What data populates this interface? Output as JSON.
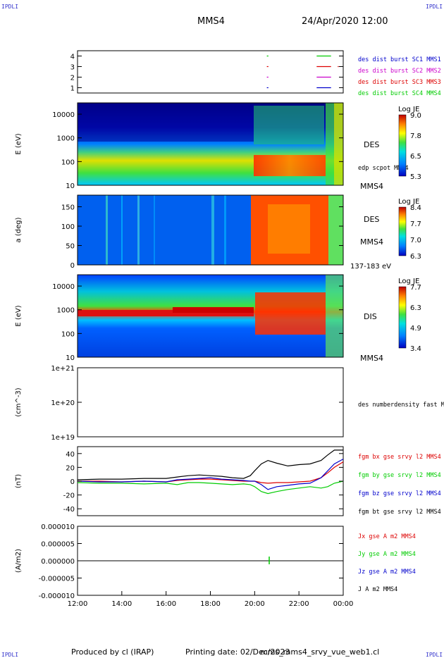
{
  "header": {
    "corner_label": "IPDLI",
    "spacecraft": "MMS4",
    "datetime": "24/Apr/2020 12:00"
  },
  "footer": {
    "produced_by": "Produced by cl (IRAP)",
    "printing_date": "Printing date: 02/Dec/2023",
    "script_name": "mms_mms4_srvy_vue_web1.cl"
  },
  "colors": {
    "blue": "#0000cc",
    "magenta": "#cc00cc",
    "red": "#dd0000",
    "green": "#00cc00",
    "black": "#000000"
  },
  "chart_data": [
    {
      "panel": "burst",
      "type": "line",
      "ylim": [
        0.5,
        4.5
      ],
      "yticks": [
        "1",
        "2",
        "3",
        "4"
      ],
      "legend": [
        {
          "text": "des dist burst SC1 MMS1",
          "color": "#0000cc"
        },
        {
          "text": "des dist burst SC2 MMS2",
          "color": "#cc00cc"
        },
        {
          "text": "des dist burst SC3 MMS3",
          "color": "#dd0000"
        },
        {
          "text": "des dist burst SC4 MMS4",
          "color": "#00cc00"
        }
      ],
      "intervals_hours": [
        {
          "level": 4,
          "color": "#00cc00",
          "spans": [
            [
              20.55,
              20.62
            ],
            [
              22.8,
              23.45
            ]
          ]
        },
        {
          "level": 3,
          "color": "#dd0000",
          "spans": [
            [
              20.55,
              20.62
            ],
            [
              22.8,
              23.45
            ],
            [
              23.75,
              23.8
            ]
          ]
        },
        {
          "level": 2,
          "color": "#cc00cc",
          "spans": [
            [
              20.55,
              20.62
            ],
            [
              22.8,
              23.45
            ]
          ]
        },
        {
          "level": 1,
          "color": "#0000cc",
          "spans": [
            [
              20.55,
              20.62
            ],
            [
              22.8,
              23.45
            ]
          ]
        }
      ]
    },
    {
      "panel": "des_energy",
      "type": "heatmap",
      "ylabel": "E (eV)",
      "yscale": "log",
      "ylim": [
        10,
        30000
      ],
      "yticks": [
        "10",
        "100",
        "1000",
        "10000"
      ],
      "label": "DES",
      "overlay": "edp scpot MMS4",
      "sc_label": "MMS4",
      "colorbar": {
        "title": "Log JE",
        "ticks": [
          "9.0",
          "7.8",
          "6.5",
          "5.3"
        ]
      }
    },
    {
      "panel": "des_pitch",
      "type": "heatmap",
      "ylabel": "a (deg)",
      "ylim": [
        0,
        180
      ],
      "yticks": [
        "0",
        "50",
        "100",
        "150"
      ],
      "label": "DES",
      "sc_label": "MMS4",
      "energy_range": "137-183 eV",
      "colorbar": {
        "title": "Log JE",
        "ticks": [
          "8.4",
          "7.7",
          "7.0",
          "6.3"
        ]
      }
    },
    {
      "panel": "dis_energy",
      "type": "heatmap",
      "ylabel": "E (eV)",
      "yscale": "log",
      "ylim": [
        10,
        30000
      ],
      "yticks": [
        "10",
        "100",
        "1000",
        "10000"
      ],
      "label": "DIS",
      "sc_label": "MMS4",
      "colorbar": {
        "title": "Log JE",
        "ticks": [
          "7.7",
          "6.3",
          "4.9",
          "3.4"
        ]
      }
    },
    {
      "panel": "density",
      "type": "line",
      "ylabel": "(cm^-3)",
      "yscale": "log",
      "yticks": [
        "1e+19",
        "1e+20",
        "1e+21"
      ],
      "legend": [
        {
          "text": "des numberdensity fast M",
          "color": "#000000"
        }
      ],
      "series": []
    },
    {
      "panel": "fgm",
      "type": "line",
      "ylabel": "(nT)",
      "ylim": [
        -50,
        50
      ],
      "yticks": [
        "-40",
        "-20",
        "0",
        "20",
        "40"
      ],
      "legend": [
        {
          "text": "fgm bx gse srvy l2 MMS4",
          "color": "#dd0000"
        },
        {
          "text": "fgm by gse srvy l2 MMS4",
          "color": "#00cc00"
        },
        {
          "text": "fgm bz gse srvy l2 MMS4",
          "color": "#0000cc"
        },
        {
          "text": "fgm bt gse srvy l2 MMS4",
          "color": "#000000"
        }
      ],
      "x_hours": [
        12,
        13,
        14,
        15,
        16,
        16.5,
        17,
        17.5,
        18,
        18.5,
        19,
        19.5,
        19.8,
        20,
        20.3,
        20.6,
        21,
        21.5,
        22,
        22.5,
        23,
        23.3,
        23.6,
        24
      ],
      "series": [
        {
          "name": "Bx",
          "color": "#dd0000",
          "values": [
            0,
            0,
            -1,
            0,
            -1,
            1,
            2,
            3,
            3,
            2,
            1,
            0,
            0,
            0,
            -2,
            -3,
            -2,
            -2,
            -1,
            0,
            5,
            12,
            20,
            28
          ]
        },
        {
          "name": "By",
          "color": "#00cc00",
          "values": [
            -2,
            -3,
            -3,
            -4,
            -3,
            -5,
            -2,
            -2,
            -3,
            -4,
            -5,
            -4,
            -5,
            -8,
            -15,
            -18,
            -15,
            -12,
            -10,
            -8,
            -10,
            -8,
            -3,
            0
          ]
        },
        {
          "name": "Bz",
          "color": "#0000cc",
          "values": [
            0,
            -1,
            -1,
            0,
            -1,
            2,
            3,
            4,
            5,
            3,
            2,
            1,
            0,
            0,
            -5,
            -12,
            -8,
            -6,
            -4,
            -3,
            5,
            15,
            25,
            32
          ]
        },
        {
          "name": "Bt",
          "color": "#000000",
          "values": [
            2,
            3,
            3,
            4,
            4,
            6,
            8,
            9,
            8,
            7,
            5,
            4,
            8,
            15,
            25,
            30,
            26,
            22,
            24,
            25,
            30,
            38,
            45,
            45
          ]
        }
      ]
    },
    {
      "panel": "current",
      "type": "line",
      "ylabel": "(A/m2)",
      "ylim": [
        -1e-05,
        1e-05
      ],
      "yticks": [
        "-0.000010",
        "-0.000005",
        "0.000000",
        "0.000005",
        "0.000010"
      ],
      "xlim": [
        12,
        24
      ],
      "xticks": [
        "12:00",
        "14:00",
        "16:00",
        "18:00",
        "20:00",
        "22:00",
        "00:00"
      ],
      "legend": [
        {
          "text": "Jx gse A m2 MMS4",
          "color": "#dd0000"
        },
        {
          "text": "Jy gse A m2 MMS4",
          "color": "#00cc00"
        },
        {
          "text": "Jz gse A m2 MMS4",
          "color": "#0000cc"
        },
        {
          "text": "J A m2 MMS4",
          "color": "#000000"
        }
      ],
      "series": []
    }
  ]
}
